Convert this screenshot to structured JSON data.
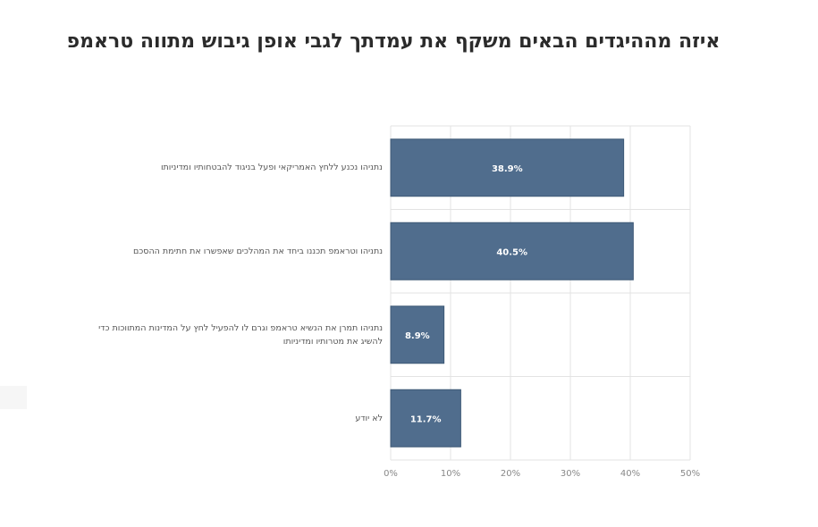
{
  "chart_data": {
    "type": "bar",
    "orientation": "horizontal",
    "title": "איזה מההיגדים הבאים משקף את עמדתך לגבי אופן גיבוש מתווה טראמפ",
    "categories": [
      "נתניהו נכנע ללחץ האמריקאי ופעל בניגוד להבטחותיו ומדיניותו",
      "נתניהו וטראמפ תכננו ביחד את המהלכים שאפשרו את חתימת ההסכם",
      "נתניהו תמרן את הנשיא טראמפ וגרם לו להפעיל לחץ על המדינות המתווכות כדי להשיג את מטרותיו ומדיניותו",
      "לא יודע"
    ],
    "values": [
      38.9,
      40.5,
      8.9,
      11.7
    ],
    "data_labels": [
      "38.9%",
      "40.5%",
      "8.9%",
      "11.7%"
    ],
    "xlim": [
      0,
      50
    ],
    "xticks": [
      0,
      10,
      20,
      30,
      40,
      50
    ],
    "xtick_labels": [
      "0%",
      "10%",
      "20%",
      "30%",
      "40%",
      "50%"
    ],
    "xlabel": "",
    "ylabel": "",
    "grid": true,
    "bar_color": "#506d8d"
  }
}
